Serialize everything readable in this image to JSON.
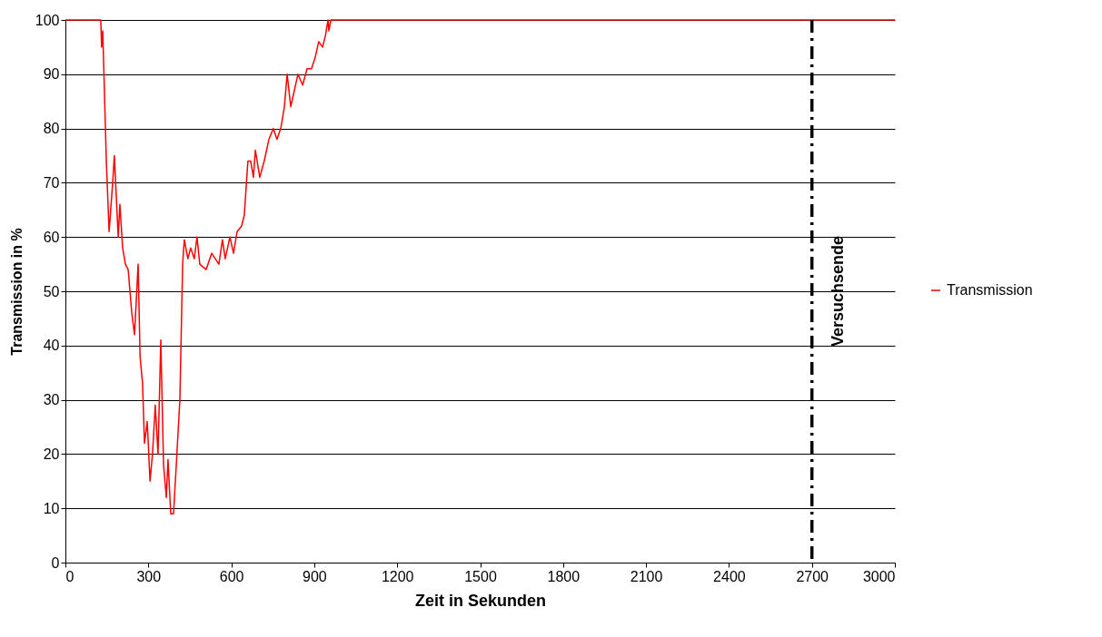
{
  "chart_data": {
    "type": "line",
    "xlabel": "Zeit in Sekunden",
    "ylabel": "Transmission in %",
    "x": [
      0,
      122,
      128,
      131,
      135,
      141,
      148,
      158,
      171,
      177,
      191,
      197,
      207,
      217,
      227,
      240,
      250,
      263,
      270,
      279,
      286,
      296,
      306,
      315,
      325,
      335,
      345,
      355,
      365,
      371,
      381,
      391,
      401,
      414,
      424,
      430,
      443,
      453,
      466,
      476,
      486,
      509,
      529,
      555,
      568,
      578,
      595,
      608,
      621,
      637,
      647,
      660,
      670,
      680,
      687,
      703,
      719,
      736,
      752,
      765,
      779,
      792,
      802,
      815,
      828,
      841,
      858,
      874,
      890,
      903,
      916,
      930,
      940,
      950,
      953,
      960,
      1200,
      3000
    ],
    "series": [
      {
        "name": "Transmission",
        "color": "#ff0000",
        "values": [
          100,
          100,
          100,
          95,
          98,
          87,
          74,
          61,
          70,
          75,
          60,
          66,
          58,
          55,
          54,
          46,
          42,
          55,
          38,
          33,
          22,
          26,
          15,
          20,
          29,
          20,
          41,
          18,
          12,
          19,
          9,
          9,
          18,
          30,
          55,
          59.5,
          56,
          58,
          56,
          60,
          55,
          54,
          57,
          55,
          59.5,
          56,
          60,
          57,
          61,
          62,
          64,
          74,
          74,
          71,
          76,
          71,
          74,
          78,
          80,
          78,
          80,
          84,
          90,
          84,
          87,
          90,
          88,
          91,
          91,
          93,
          96,
          95,
          97,
          100,
          98,
          100,
          100,
          100
        ]
      }
    ],
    "xlim": [
      0,
      3000
    ],
    "xticks": [
      0,
      300,
      600,
      900,
      1200,
      1500,
      1800,
      2100,
      2400,
      2700,
      3000
    ],
    "ylim": [
      0,
      100
    ],
    "yticks": [
      0,
      10,
      20,
      30,
      40,
      50,
      60,
      70,
      80,
      90,
      100
    ],
    "grid": "y",
    "legend": "right",
    "line_style": "solid",
    "ref_lines": [
      {
        "axis": "x",
        "value": 2700,
        "label": "Versuchsende",
        "color": "#000000",
        "line_style": "dashdot"
      }
    ]
  }
}
